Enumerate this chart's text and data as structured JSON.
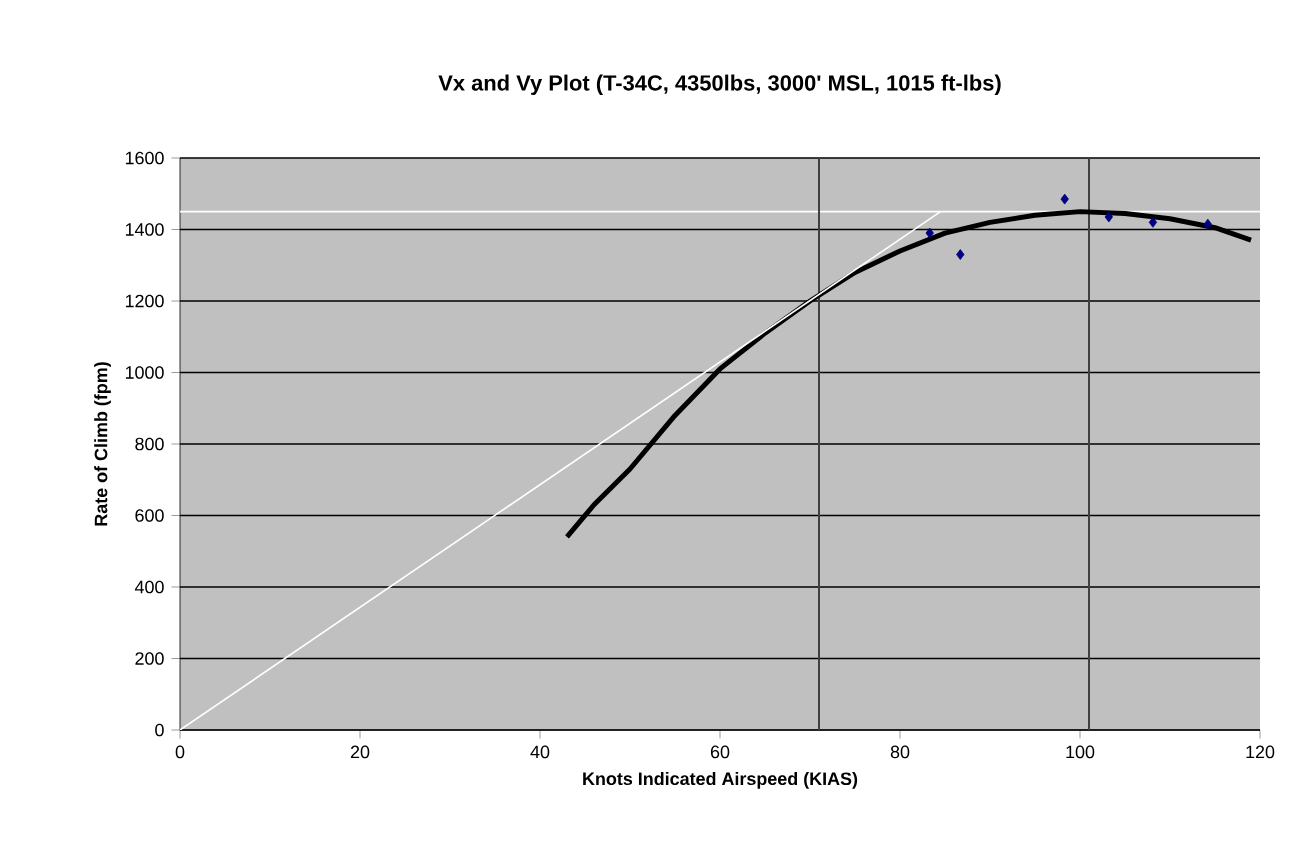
{
  "chart_data": {
    "type": "scatter",
    "title": "Vx and Vy Plot (T-34C, 4350lbs, 3000' MSL, 1015 ft-lbs)",
    "xlabel": "Knots Indicated Airspeed (KIAS)",
    "ylabel": "Rate of Climb (fpm)",
    "xlim": [
      0,
      120
    ],
    "ylim": [
      0,
      1600
    ],
    "xticks": [
      0,
      20,
      40,
      60,
      80,
      100,
      120
    ],
    "yticks": [
      0,
      200,
      400,
      600,
      800,
      1000,
      1200,
      1400,
      1600
    ],
    "grid": "y",
    "series": [
      {
        "color": "#000080",
        "marker": "diamond",
        "x": [
          83.3,
          86.7,
          98.3,
          103.2,
          108.1,
          114.2
        ],
        "values": [
          1390,
          1330,
          1485,
          1435,
          1420,
          1415
        ]
      },
      {
        "type": "line",
        "color": "#000000",
        "marker": "none",
        "x": [
          43,
          46,
          50,
          55,
          60,
          65,
          70,
          75,
          80,
          85,
          90,
          95,
          100,
          105,
          110,
          115,
          119
        ],
        "values": [
          540,
          630,
          730,
          880,
          1010,
          1110,
          1200,
          1280,
          1340,
          1390,
          1420,
          1440,
          1450,
          1445,
          1430,
          1405,
          1370
        ]
      },
      {
        "type": "line",
        "color": "#ffffff",
        "marker": "none",
        "x": [
          0,
          84.5
        ],
        "values": [
          0,
          1450
        ]
      }
    ],
    "ref_lines": [
      {
        "axis": "y",
        "value": 1450,
        "color": "#ffffff"
      },
      {
        "axis": "x",
        "value": 71,
        "color": "#404040"
      },
      {
        "axis": "x",
        "value": 101,
        "color": "#404040"
      }
    ]
  }
}
